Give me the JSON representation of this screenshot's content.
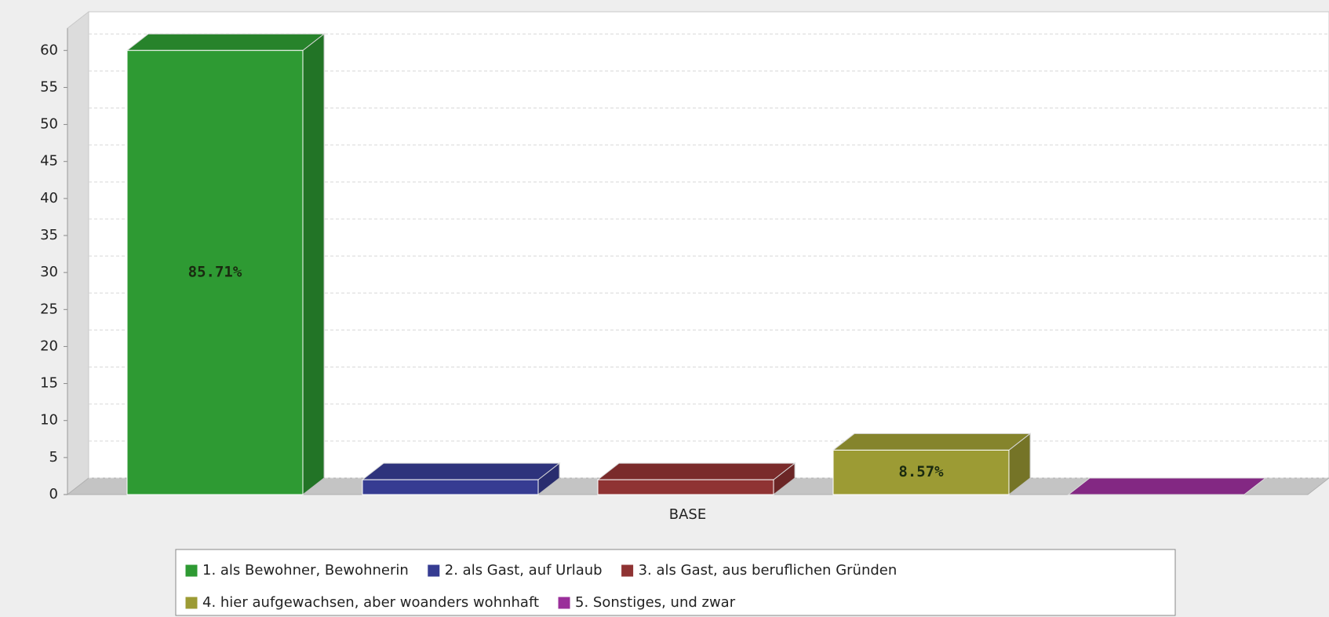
{
  "chart_data": {
    "type": "bar3d",
    "categories": [
      "BASE"
    ],
    "series": [
      {
        "name": "1. als Bewohner, Bewohnerin",
        "color": "#2e9a33",
        "values": [
          60
        ],
        "value_labels": [
          "85.71%"
        ]
      },
      {
        "name": "2. als Gast, auf Urlaub",
        "color": "#363c92",
        "values": [
          2
        ]
      },
      {
        "name": "3. als Gast, aus beruflichen Gründen",
        "color": "#8f3333",
        "values": [
          2
        ]
      },
      {
        "name": "4. hier aufgewachsen, aber woanders wohnhaft",
        "color": "#9c9b34",
        "values": [
          6
        ],
        "value_labels": [
          "8.57%"
        ]
      },
      {
        "name": "5. Sonstiges, und zwar",
        "color": "#9a2f9a",
        "values": [
          0
        ]
      }
    ],
    "ylim": [
      0,
      63
    ],
    "yticks": [
      0,
      5,
      10,
      15,
      20,
      25,
      30,
      35,
      40,
      45,
      50,
      55,
      60
    ],
    "grid": true,
    "legend": "bottom"
  }
}
